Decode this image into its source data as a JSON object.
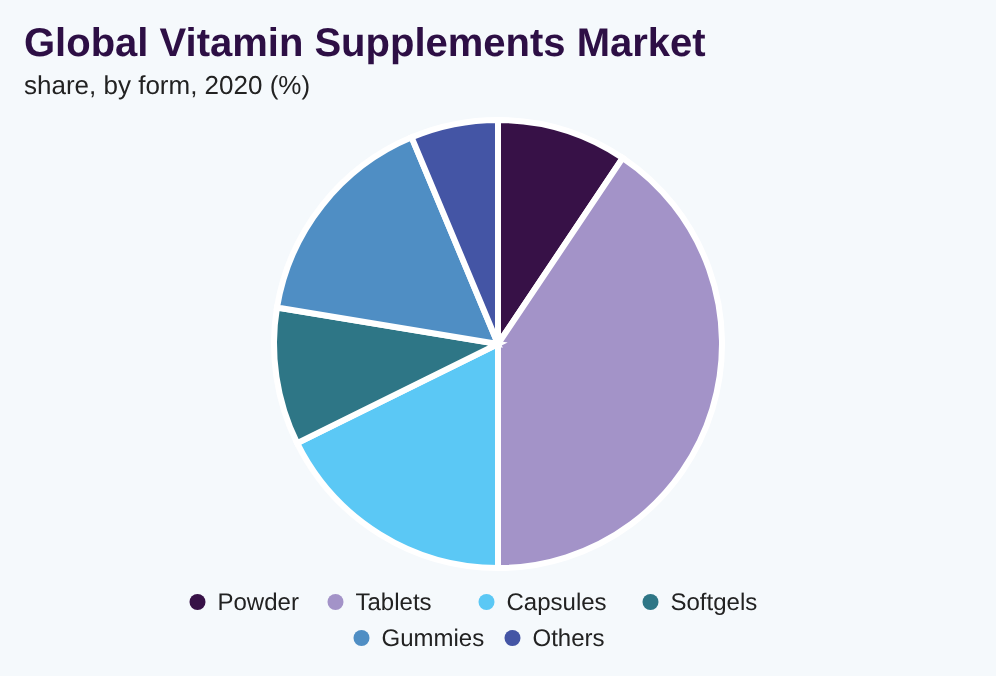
{
  "chart_data": {
    "type": "pie",
    "title": "Global Vitamin Supplements Market",
    "subtitle": "share, by form, 2020 (%)",
    "categories": [
      "Powder",
      "Tablets",
      "Capsules",
      "Softgels",
      "Gummies",
      "Others"
    ],
    "values": [
      9.4,
      40.6,
      17.7,
      9.9,
      16.1,
      6.3
    ],
    "colors": [
      "#371147",
      "#a393c8",
      "#5bc8f5",
      "#2e7686",
      "#4f8ec4",
      "#4455a5"
    ],
    "legend": "bottom"
  }
}
